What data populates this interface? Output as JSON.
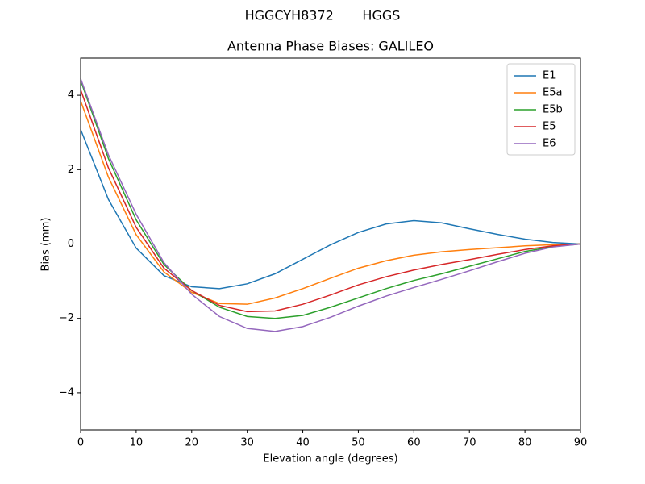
{
  "chart_data": {
    "type": "line",
    "suptitle": "HGGCYH8372       HGGS",
    "title": "Antenna Phase Biases: GALILEO",
    "xlabel": "Elevation angle (degrees)",
    "ylabel": "Bias (mm)",
    "x": [
      0,
      5,
      10,
      15,
      20,
      25,
      30,
      35,
      40,
      45,
      50,
      55,
      60,
      65,
      70,
      75,
      80,
      85,
      90
    ],
    "series": [
      {
        "name": "E1",
        "color": "#1f77b4",
        "values": [
          3.08,
          1.2,
          -0.11,
          -0.85,
          -1.15,
          -1.2,
          -1.07,
          -0.8,
          -0.41,
          -0.02,
          0.31,
          0.54,
          0.63,
          0.57,
          0.41,
          0.26,
          0.13,
          0.04,
          0
        ]
      },
      {
        "name": "E5a",
        "color": "#ff7f0e",
        "values": [
          3.85,
          1.8,
          0.25,
          -0.75,
          -1.3,
          -1.6,
          -1.62,
          -1.45,
          -1.2,
          -0.92,
          -0.65,
          -0.45,
          -0.3,
          -0.21,
          -0.15,
          -0.1,
          -0.05,
          -0.02,
          0
        ]
      },
      {
        "name": "E5b",
        "color": "#2ca02c",
        "values": [
          4.4,
          2.3,
          0.65,
          -0.55,
          -1.25,
          -1.7,
          -1.95,
          -2.0,
          -1.92,
          -1.7,
          -1.45,
          -1.2,
          -0.98,
          -0.8,
          -0.6,
          -0.4,
          -0.2,
          -0.07,
          0
        ]
      },
      {
        "name": "E5",
        "color": "#d62728",
        "values": [
          4.15,
          2.05,
          0.45,
          -0.65,
          -1.25,
          -1.65,
          -1.82,
          -1.8,
          -1.62,
          -1.37,
          -1.1,
          -0.88,
          -0.7,
          -0.55,
          -0.42,
          -0.28,
          -0.15,
          -0.05,
          0
        ]
      },
      {
        "name": "E6",
        "color": "#9467bd",
        "values": [
          4.45,
          2.4,
          0.8,
          -0.5,
          -1.35,
          -1.95,
          -2.27,
          -2.35,
          -2.22,
          -1.97,
          -1.67,
          -1.4,
          -1.17,
          -0.95,
          -0.72,
          -0.48,
          -0.25,
          -0.08,
          0
        ]
      }
    ],
    "xlim": [
      0,
      90
    ],
    "xticks": [
      0,
      10,
      20,
      30,
      40,
      50,
      60,
      70,
      80,
      90
    ],
    "ylim": [
      -5,
      5
    ],
    "yticks": [
      {
        "value": -4,
        "label": "−4"
      },
      {
        "value": -2,
        "label": "−2"
      },
      0,
      2,
      4
    ],
    "grid": false,
    "legend": "upper-right"
  }
}
